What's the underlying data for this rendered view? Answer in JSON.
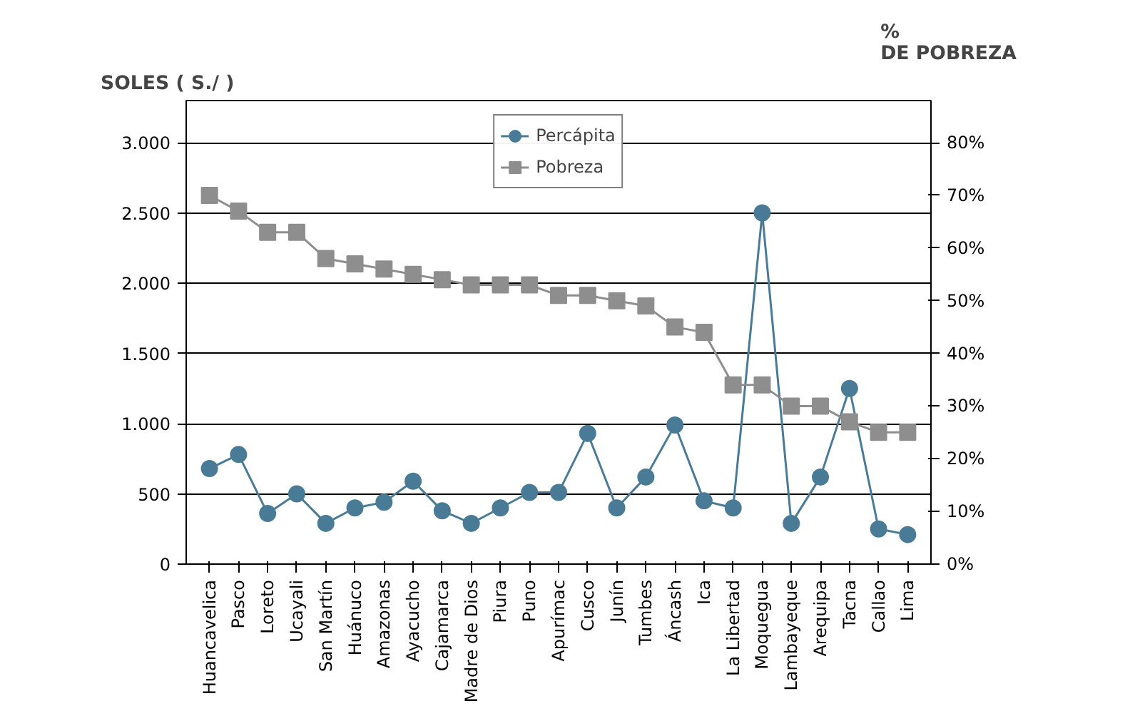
{
  "chart_data": {
    "type": "line",
    "ylabel": "SOLES ( S./ )",
    "y2label": "%\nDE POBREZA",
    "categories": [
      "Huancavelica",
      "Pasco",
      "Loreto",
      "Ucayali",
      "San Martín",
      "Huánuco",
      "Amazonas",
      "Ayacucho",
      "Cajamarca",
      "Madre de Dios",
      "Piura",
      "Puno",
      "Apurímac",
      "Cusco",
      "Junín",
      "Tumbes",
      "Áncash",
      "Ica",
      "La Libertad",
      "Moquegua",
      "Lambayeque",
      "Arequipa",
      "Tacna",
      "Callao",
      "Lima"
    ],
    "series": [
      {
        "name": "Percápita",
        "color": "#4a7b96",
        "marker": "circle",
        "values": [
          680,
          780,
          360,
          500,
          290,
          400,
          440,
          590,
          380,
          290,
          400,
          510,
          510,
          930,
          400,
          620,
          990,
          450,
          400,
          2500,
          290,
          620,
          1250,
          250,
          210
        ]
      },
      {
        "name": "Pobreza",
        "color": "#8e8e8e",
        "marker": "square",
        "axis": "y2",
        "values": [
          70,
          67,
          63,
          63,
          58,
          57,
          56,
          55,
          54,
          53,
          53,
          53,
          51,
          51,
          50,
          49,
          45,
          44,
          34,
          34,
          30,
          30,
          27,
          25,
          25
        ]
      }
    ],
    "ylim": [
      0,
      3300
    ],
    "yticks": [
      {
        "value": 0,
        "label": "0"
      },
      {
        "value": 500,
        "label": "500"
      },
      {
        "value": 1000,
        "label": "1.000"
      },
      {
        "value": 1500,
        "label": "1.500"
      },
      {
        "value": 2000,
        "label": "2.000"
      },
      {
        "value": 2500,
        "label": "2.500"
      },
      {
        "value": 3000,
        "label": "3.000"
      }
    ],
    "y2lim": [
      0,
      88
    ],
    "y2ticks": [
      {
        "value": 0,
        "label": "0%"
      },
      {
        "value": 10,
        "label": "10%"
      },
      {
        "value": 20,
        "label": "20%"
      },
      {
        "value": 30,
        "label": "30%"
      },
      {
        "value": 40,
        "label": "40%"
      },
      {
        "value": 50,
        "label": "50%"
      },
      {
        "value": 60,
        "label": "60%"
      },
      {
        "value": 70,
        "label": "70%"
      },
      {
        "value": 80,
        "label": "80%"
      }
    ],
    "grid": "y",
    "legend": "top"
  }
}
